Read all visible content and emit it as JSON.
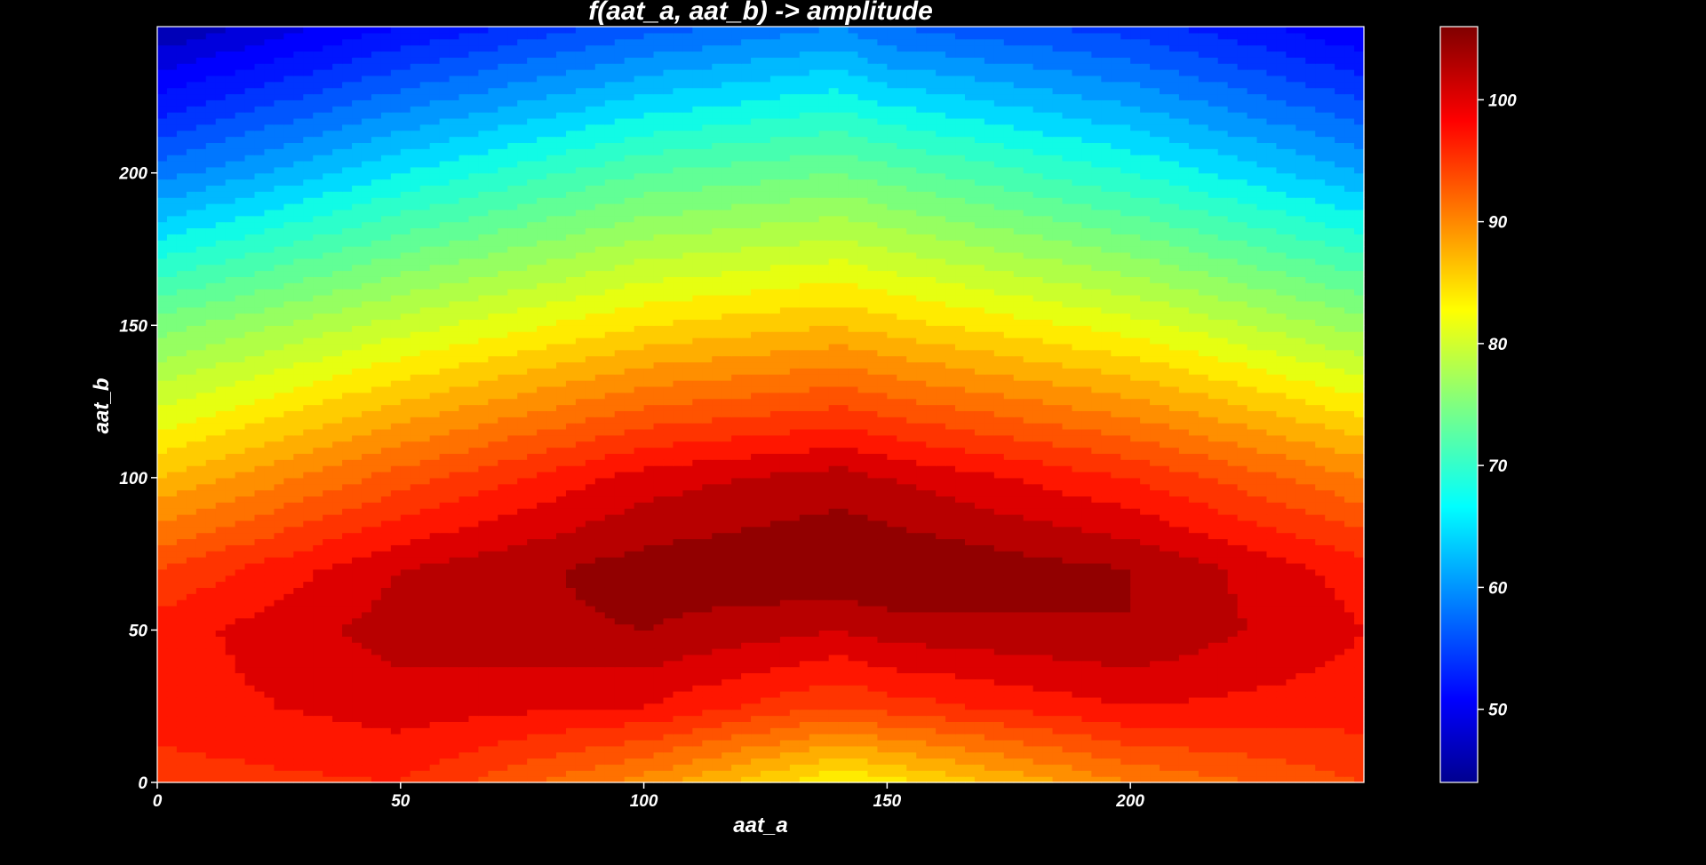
{
  "chart_data": {
    "type": "heatmap",
    "style": "filled-contour",
    "colormap": "jet",
    "title": "f(aat_a, aat_b) -> amplitude",
    "xlabel": "aat_a",
    "ylabel": "aat_b",
    "xlim": [
      0,
      248
    ],
    "ylim": [
      0,
      248
    ],
    "xticks": [
      0,
      50,
      100,
      150,
      200
    ],
    "yticks": [
      0,
      50,
      100,
      150,
      200
    ],
    "x": [
      0,
      50,
      100,
      140,
      150,
      200,
      248
    ],
    "y": [
      0,
      25,
      50,
      70,
      100,
      150,
      200,
      248
    ],
    "z": [
      [
        97,
        98,
        91,
        84,
        85,
        92,
        96
      ],
      [
        99,
        101,
        100,
        96,
        97,
        100,
        99
      ],
      [
        99,
        103,
        104,
        102,
        103,
        104,
        100
      ],
      [
        96,
        102,
        105,
        106,
        106,
        104,
        99
      ],
      [
        88,
        95,
        101,
        103,
        102,
        98,
        92
      ],
      [
        75,
        81,
        86,
        88,
        87,
        83,
        77
      ],
      [
        59,
        66,
        72,
        74,
        73,
        68,
        62
      ],
      [
        46,
        52,
        57,
        60,
        58,
        55,
        50
      ]
    ],
    "colorbar": {
      "range": [
        44,
        106
      ],
      "ticks": [
        50,
        60,
        70,
        80,
        90,
        100
      ]
    },
    "grid": false
  }
}
